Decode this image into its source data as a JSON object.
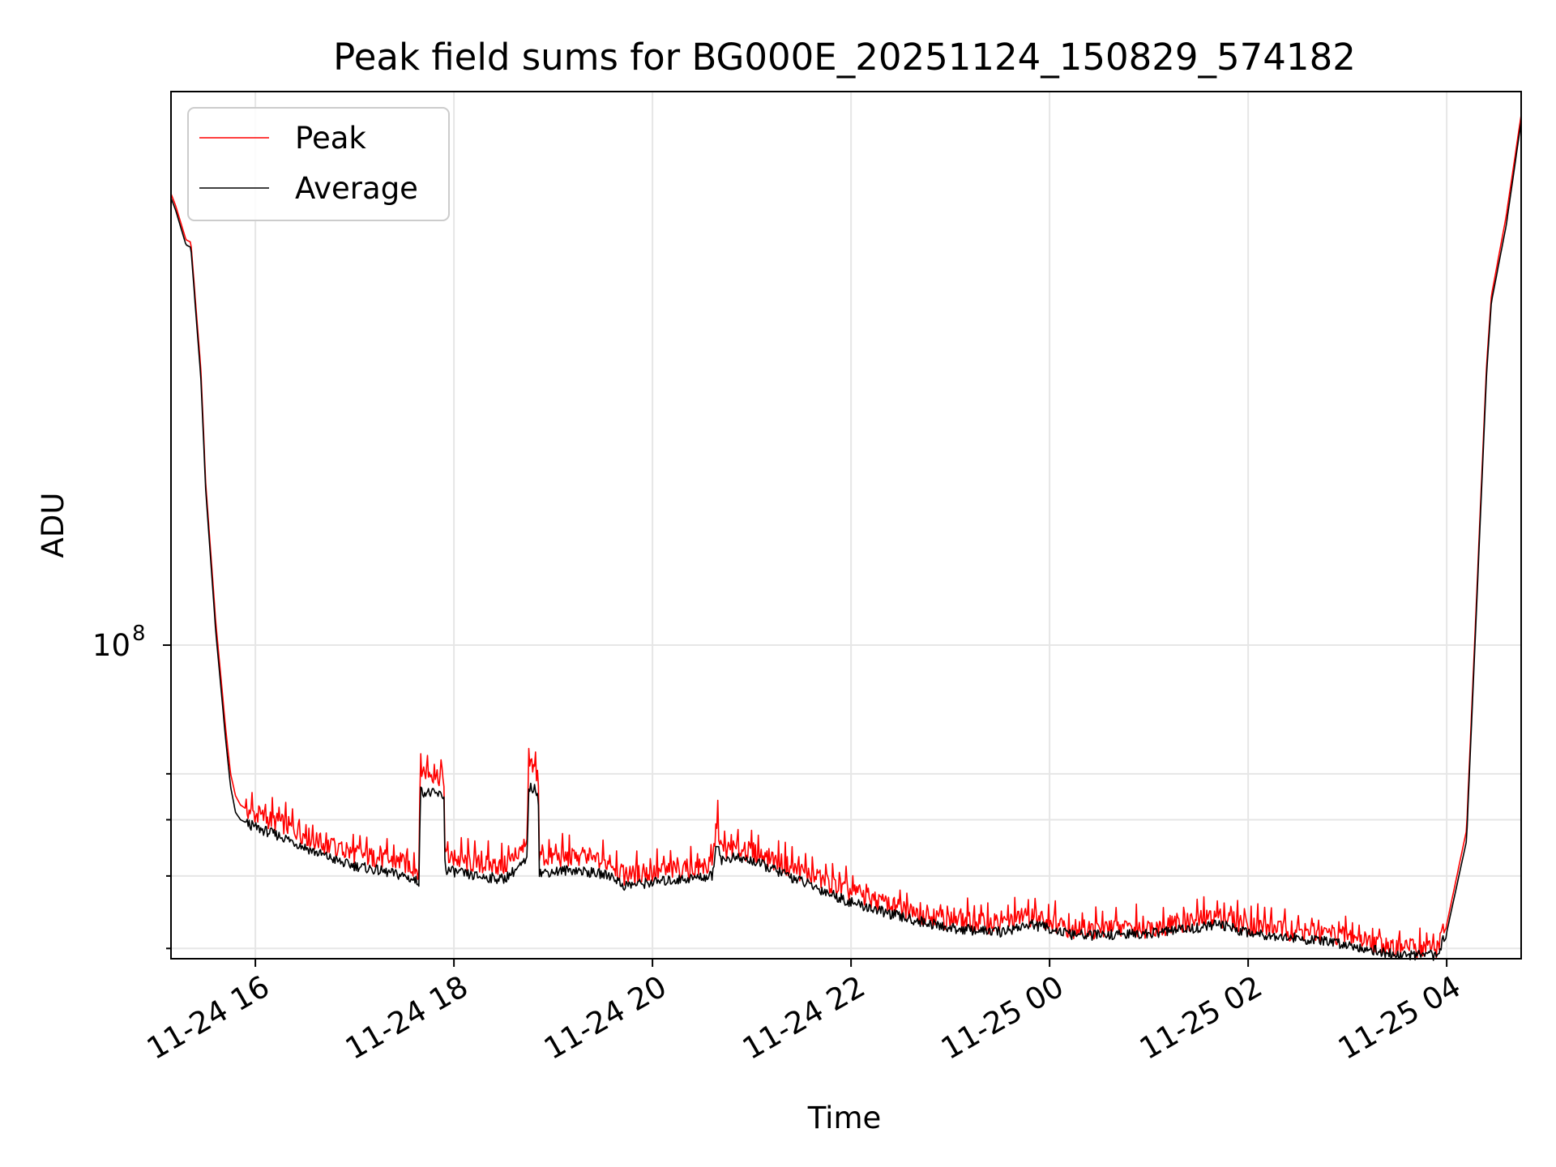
{
  "chart_data": {
    "type": "line",
    "title": "Peak field sums for BG000E_20251124_150829_574182",
    "xlabel": "Time",
    "ylabel": "ADU",
    "yscale": "log",
    "grid": true,
    "legend_position": "top-left",
    "xlim": [
      15.15,
      28.75
    ],
    "ylim": [
      28800000,
      900000000
    ],
    "x_unit": "hours since 11-24 00:00",
    "x_ticks": [
      {
        "value": 16,
        "label": "11-24 16"
      },
      {
        "value": 18,
        "label": "11-24 18"
      },
      {
        "value": 20,
        "label": "11-24 20"
      },
      {
        "value": 22,
        "label": "11-24 22"
      },
      {
        "value": 24,
        "label": "11-25 00"
      },
      {
        "value": 26,
        "label": "11-25 02"
      },
      {
        "value": 28,
        "label": "11-25 04"
      }
    ],
    "y_major_ticks": [
      {
        "value": 100000000,
        "base": "10",
        "exponent": "8"
      }
    ],
    "y_minor_ticks": [
      30000000,
      40000000,
      50000000,
      60000000
    ],
    "series": [
      {
        "name": "Peak",
        "color": "#ff0000",
        "x": [
          15.15,
          15.2,
          15.3,
          15.35,
          15.45,
          15.5,
          15.6,
          15.7,
          15.75,
          15.8,
          15.85,
          16.0,
          16.3,
          16.6,
          16.9,
          17.2,
          17.5,
          17.65,
          17.66,
          17.9,
          17.91,
          18.2,
          18.5,
          18.74,
          18.75,
          18.85,
          18.86,
          19.2,
          19.6,
          19.7,
          20.0,
          20.3,
          20.6,
          20.65,
          20.7,
          20.8,
          21.0,
          21.3,
          21.6,
          22.0,
          22.5,
          23.0,
          23.5,
          23.8,
          24.0,
          24.2,
          24.4,
          25.0,
          25.5,
          25.7,
          26.0,
          26.5,
          27.0,
          27.5,
          27.9,
          28.0,
          28.2,
          28.4,
          28.45,
          28.6,
          28.75
        ],
        "values": [
          600000000,
          570000000,
          500000000,
          495000000,
          300000000,
          190000000,
          110000000,
          72000000,
          60000000,
          55000000,
          53000000,
          51000000,
          49000000,
          46000000,
          44000000,
          43000000,
          42000000,
          41000000,
          61000000,
          59000000,
          43000000,
          42000000,
          41500000,
          45000000,
          62000000,
          60000000,
          43000000,
          43000000,
          42000000,
          40000000,
          40500000,
          41000000,
          41500000,
          50000000,
          44000000,
          44500000,
          44000000,
          42000000,
          40000000,
          37500000,
          35000000,
          33500000,
          33000000,
          34000000,
          33500000,
          32500000,
          32300000,
          32500000,
          33500000,
          34000000,
          33000000,
          32000000,
          31500000,
          30000000,
          30000000,
          33000000,
          48000000,
          300000000,
          400000000,
          550000000,
          820000000
        ]
      },
      {
        "name": "Average",
        "color": "#000000",
        "x": [
          15.15,
          15.2,
          15.3,
          15.35,
          15.45,
          15.5,
          15.6,
          15.7,
          15.75,
          15.8,
          15.85,
          16.0,
          16.3,
          16.6,
          16.9,
          17.2,
          17.5,
          17.65,
          17.66,
          17.9,
          17.91,
          18.2,
          18.5,
          18.74,
          18.75,
          18.85,
          18.86,
          19.2,
          19.6,
          19.7,
          20.0,
          20.3,
          20.6,
          20.65,
          20.7,
          20.8,
          21.0,
          21.3,
          21.6,
          22.0,
          22.5,
          23.0,
          23.5,
          23.8,
          24.0,
          24.2,
          24.4,
          25.0,
          25.5,
          25.7,
          26.0,
          26.5,
          27.0,
          27.5,
          27.9,
          28.0,
          28.2,
          28.4,
          28.45,
          28.6,
          28.75
        ],
        "values": [
          590000000,
          560000000,
          490000000,
          485000000,
          290000000,
          185000000,
          106000000,
          69000000,
          57000000,
          51500000,
          50000000,
          48500000,
          46500000,
          44000000,
          42000000,
          41000000,
          40000000,
          39000000,
          56000000,
          55000000,
          41000000,
          40000000,
          39500000,
          42500000,
          57000000,
          56000000,
          40500000,
          41000000,
          40000000,
          38500000,
          39000000,
          39500000,
          40000000,
          46000000,
          42500000,
          43000000,
          42500000,
          40500000,
          38500000,
          36000000,
          34000000,
          32500000,
          32000000,
          33000000,
          32500000,
          31700000,
          31600000,
          31800000,
          32600000,
          33000000,
          32000000,
          31200000,
          30500000,
          29200000,
          29200000,
          32000000,
          46000000,
          290000000,
          390000000,
          530000000,
          800000000
        ]
      }
    ]
  }
}
